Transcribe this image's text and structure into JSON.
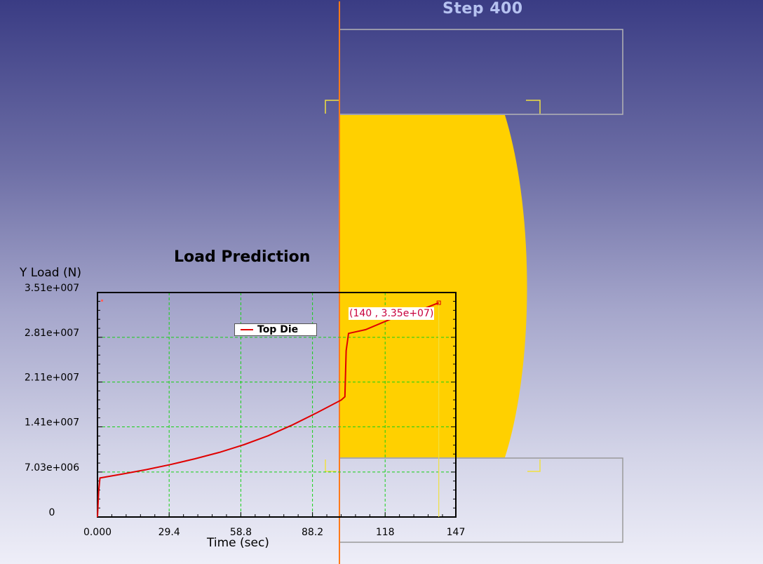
{
  "simulation": {
    "step_label": "Step  400"
  },
  "colors": {
    "workpiece": "#ffd000",
    "die_outline": "#b4b4b4",
    "symmetry_axis": "#ff7a1a",
    "grid": "#16d016",
    "series": "#e00000",
    "annotation_text": "#c8003c"
  },
  "chart_data": {
    "type": "line",
    "title": "Load Prediction",
    "xlabel": "Time (sec)",
    "ylabel": "Y Load (N)",
    "xlim": [
      0,
      147
    ],
    "ylim": [
      0,
      35100000
    ],
    "x_tick_values": [
      0,
      29.4,
      58.8,
      88.2,
      118,
      147
    ],
    "x_tick_labels": [
      "0.000",
      "29.4",
      "58.8",
      "88.2",
      "118",
      "147"
    ],
    "y_tick_values": [
      0,
      7030000,
      14100000,
      21100000,
      28100000,
      35100000
    ],
    "y_tick_labels": [
      "0",
      "7.03e+006",
      "1.41e+007",
      "2.11e+007",
      "2.81e+007",
      "3.51e+007"
    ],
    "grid": true,
    "legend": {
      "placement": "top-center",
      "entries": [
        "Top Die"
      ]
    },
    "annotation": {
      "text": "(140 , 3.35e+07)",
      "x": 140,
      "y": 33500000
    },
    "series": [
      {
        "name": "Top Die",
        "x": [
          0,
          0.5,
          1,
          10,
          20,
          30,
          40,
          50,
          60,
          70,
          80,
          90,
          100,
          101.5,
          102,
          103,
          110,
          120,
          130,
          140
        ],
        "y": [
          0,
          4000000,
          6100000,
          6700000,
          7400000,
          8200000,
          9100000,
          10100000,
          11300000,
          12700000,
          14400000,
          16300000,
          18300000,
          18800000,
          26000000,
          28700000,
          29300000,
          30900000,
          32000000,
          33500000
        ]
      }
    ]
  }
}
